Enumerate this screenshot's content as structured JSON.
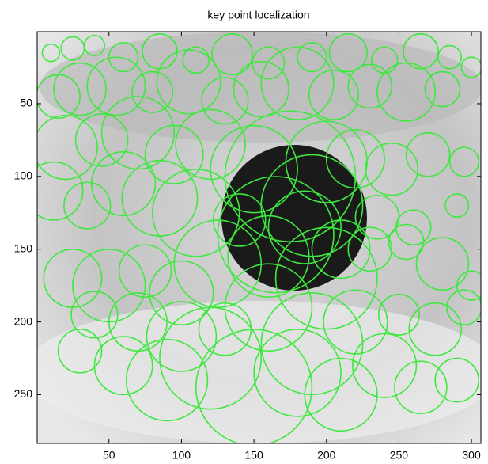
{
  "chart_data": {
    "type": "image",
    "title": "key point localization",
    "xlim": [
      0.5,
      306.5
    ],
    "ylim": [
      0.5,
      283.5
    ],
    "y_direction": "reverse",
    "xticks": [
      50,
      100,
      150,
      200,
      250,
      300
    ],
    "yticks": [
      50,
      100,
      150,
      200,
      250
    ],
    "color": "#3ee83e",
    "keypoints": {
      "x": [
        10,
        25,
        40,
        60,
        85,
        110,
        135,
        160,
        190,
        215,
        240,
        265,
        285,
        300,
        15,
        30,
        55,
        80,
        105,
        130,
        155,
        180,
        205,
        230,
        255,
        280,
        20,
        45,
        70,
        95,
        120,
        150,
        175,
        190,
        200,
        220,
        245,
        270,
        295,
        12,
        35,
        60,
        85,
        110,
        140,
        165,
        185,
        210,
        235,
        260,
        290,
        25,
        50,
        75,
        100,
        125,
        160,
        200,
        230,
        255,
        280,
        300,
        40,
        70,
        100,
        130,
        160,
        190,
        220,
        250,
        275,
        295,
        30,
        60,
        90,
        120,
        150,
        180,
        210,
        240,
        265,
        290
      ],
      "y": [
        15,
        12,
        10,
        18,
        14,
        20,
        16,
        22,
        18,
        15,
        20,
        14,
        18,
        25,
        45,
        40,
        38,
        42,
        35,
        48,
        40,
        36,
        44,
        38,
        42,
        40,
        80,
        75,
        70,
        85,
        78,
        95,
        100,
        120,
        90,
        88,
        95,
        85,
        90,
        110,
        120,
        105,
        115,
        125,
        130,
        140,
        135,
        150,
        128,
        135,
        120,
        170,
        175,
        165,
        180,
        160,
        155,
        170,
        150,
        145,
        160,
        175,
        195,
        200,
        210,
        205,
        190,
        215,
        200,
        195,
        205,
        190,
        220,
        230,
        240,
        225,
        245,
        235,
        250,
        230,
        245,
        240
      ],
      "r": [
        6,
        8,
        7,
        10,
        12,
        9,
        14,
        11,
        10,
        13,
        9,
        12,
        8,
        7,
        15,
        18,
        20,
        14,
        22,
        16,
        19,
        25,
        17,
        15,
        20,
        12,
        22,
        18,
        25,
        20,
        24,
        30,
        45,
        35,
        28,
        20,
        18,
        15,
        10,
        20,
        16,
        22,
        26,
        30,
        18,
        40,
        25,
        20,
        15,
        12,
        8,
        20,
        25,
        18,
        22,
        30,
        28,
        35,
        15,
        12,
        18,
        10,
        16,
        20,
        24,
        18,
        30,
        35,
        22,
        14,
        18,
        12,
        15,
        20,
        28,
        35,
        40,
        30,
        25,
        22,
        18,
        15
      ]
    }
  }
}
